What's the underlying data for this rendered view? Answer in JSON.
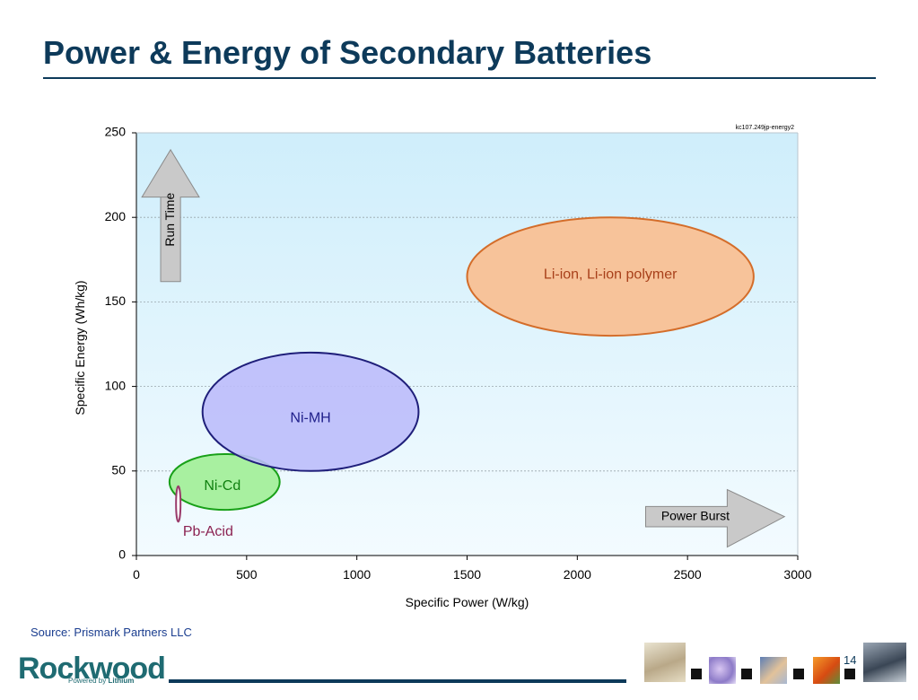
{
  "slide": {
    "title": "Power & Energy of Secondary Batteries",
    "source": "Source:  Prismark Partners LLC",
    "logo_text": "Rockwood",
    "logo_subtext_prefix": "Powered by ",
    "logo_subtext_emph": "Lithium",
    "page_number": "14",
    "footer_images": [
      "lab-flask-image",
      "flowers-image",
      "hand-image",
      "orange-crystals-image",
      "car-image"
    ]
  },
  "chart_data": {
    "type": "scatter",
    "title": "",
    "xlabel": "Specific Power (W/kg)",
    "ylabel": "Specific Energy (Wh/kg)",
    "xlim": [
      0,
      3000
    ],
    "ylim": [
      0,
      250
    ],
    "xticks": [
      0,
      500,
      1000,
      1500,
      2000,
      2500,
      3000
    ],
    "yticks": [
      0,
      50,
      100,
      150,
      200,
      250
    ],
    "grid": true,
    "chart_id_label": "kc107.249jp-energy2",
    "regions": [
      {
        "name": "Li-ion, Li-ion polymer",
        "x_range": [
          1500,
          2800
        ],
        "y_range": [
          130,
          200
        ],
        "label_x": 2150,
        "label_y": 166,
        "fill": "#f7c39a",
        "stroke": "#d46d2a",
        "text_color": "#a8401a"
      },
      {
        "name": "Ni-MH",
        "x_range": [
          300,
          1280
        ],
        "y_range": [
          50,
          120
        ],
        "label_x": 790,
        "label_y": 81,
        "fill": "#bcbcfb",
        "stroke": "#1f1f7a",
        "text_color": "#1f1f8a"
      },
      {
        "name": "Ni-Cd",
        "x_range": [
          150,
          650
        ],
        "y_range": [
          27,
          60
        ],
        "label_x": 390,
        "label_y": 41,
        "fill": "#a8f0a0",
        "stroke": "#18a018",
        "text_color": "#108010"
      },
      {
        "name": "Pb-Acid",
        "x_range": [
          180,
          200
        ],
        "y_range": [
          20,
          41
        ],
        "label_x": 325,
        "label_y": 14,
        "fill": "#ffffff",
        "stroke": "#9a3b6b",
        "text_color": "#8b2252"
      }
    ],
    "annotations": [
      {
        "text": "Run Time",
        "direction": "up"
      },
      {
        "text": "Power Burst",
        "direction": "right"
      }
    ]
  }
}
